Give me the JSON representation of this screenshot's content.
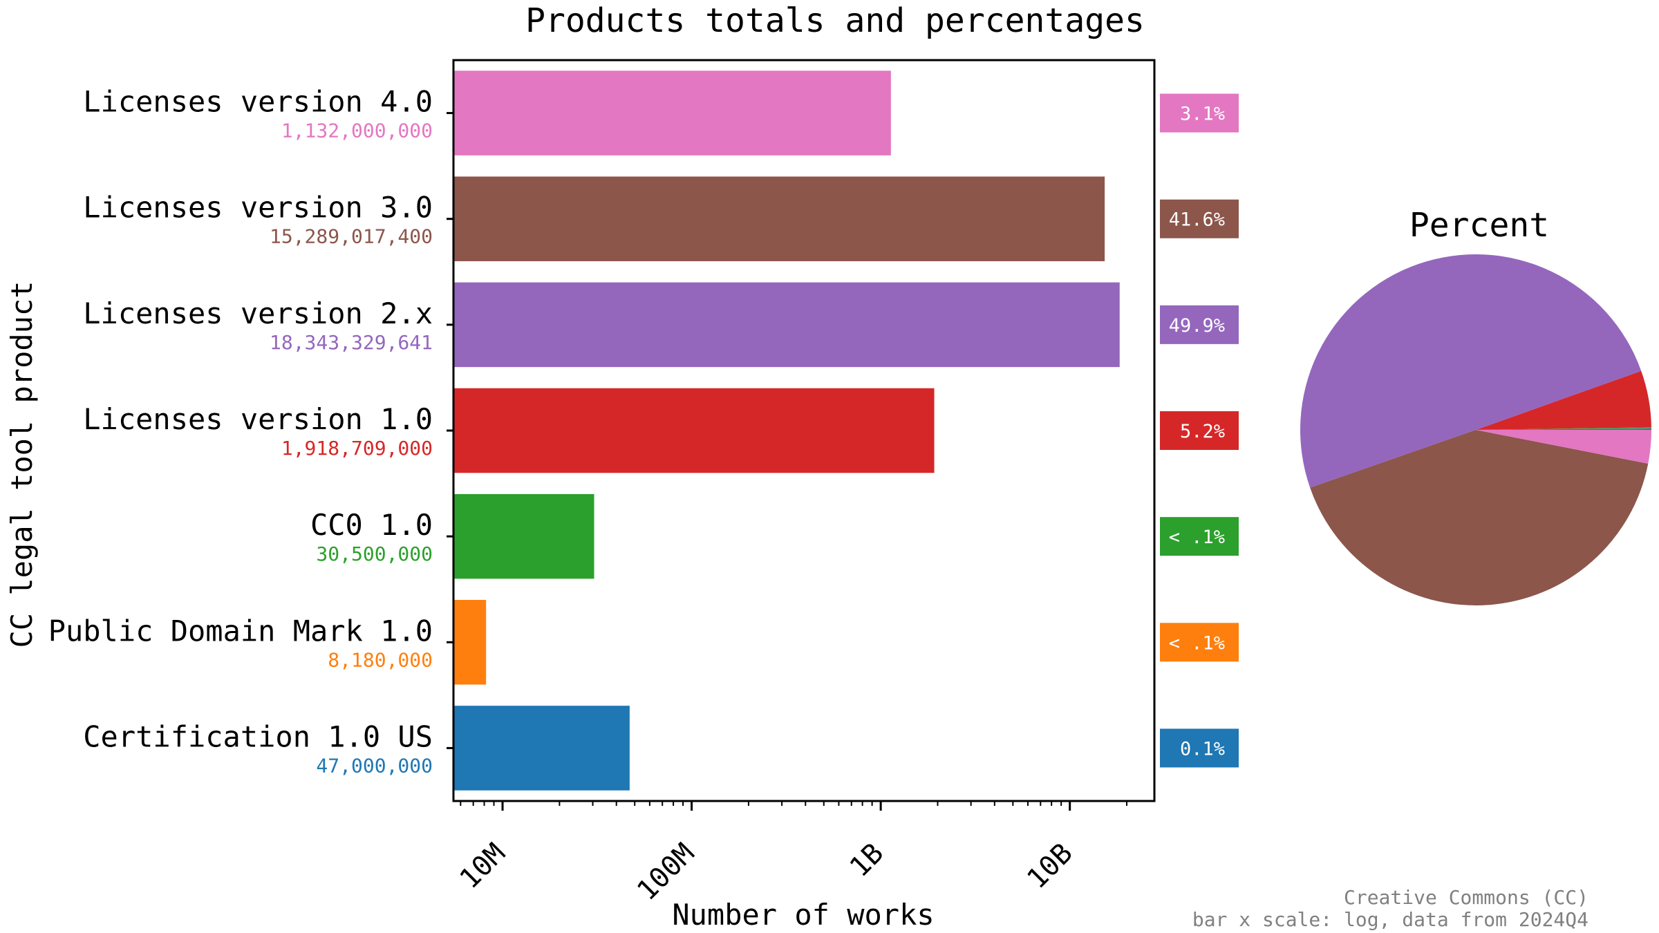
{
  "chart_data": [
    {
      "type": "bar",
      "orientation": "horizontal",
      "title": "Products totals and percentages",
      "xlabel": "Number of works",
      "ylabel": "CC legal tool product",
      "x_scale": "log",
      "xlim": [
        5500000,
        28000000000
      ],
      "x_ticks": [
        {
          "value": 10000000,
          "label": "10M"
        },
        {
          "value": 100000000,
          "label": "100M"
        },
        {
          "value": 1000000000,
          "label": "1B"
        },
        {
          "value": 10000000000,
          "label": "10B"
        }
      ],
      "grid": false,
      "categories": [
        "Licenses version 4.0",
        "Licenses version 3.0",
        "Licenses version 2.x",
        "Licenses version 1.0",
        "CC0 1.0",
        "Public Domain Mark 1.0",
        "Certification 1.0 US"
      ],
      "values": [
        1132000000,
        15289017400,
        18343329641,
        1918709000,
        30500000,
        8180000,
        47000000
      ],
      "value_labels": [
        "1,132,000,000",
        "15,289,017,400",
        "18,343,329,641",
        "1,918,709,000",
        "30,500,000",
        "8,180,000",
        "47,000,000"
      ],
      "percent_labels": [
        "3.1%",
        "41.6%",
        "49.9%",
        "5.2%",
        "< .1%",
        "< .1%",
        "0.1%"
      ],
      "colors": [
        "#e377c2",
        "#8c564b",
        "#9467bd",
        "#d62728",
        "#2ca02c",
        "#ff7f0e",
        "#1f77b4"
      ]
    },
    {
      "type": "pie",
      "title": "Percent",
      "categories": [
        "Certification 1.0 US",
        "Public Domain Mark 1.0",
        "CC0 1.0",
        "Licenses version 1.0",
        "Licenses version 2.x",
        "Licenses version 3.0",
        "Licenses version 4.0"
      ],
      "values": [
        47000000,
        8180000,
        30500000,
        1918709000,
        18343329641,
        15289017400,
        1132000000
      ],
      "colors": [
        "#1f77b4",
        "#ff7f0e",
        "#2ca02c",
        "#d62728",
        "#9467bd",
        "#8c564b",
        "#e377c2"
      ],
      "start_angle_deg": 0,
      "direction": "counterclockwise"
    }
  ],
  "footer": {
    "line1": "Creative Commons (CC)",
    "line2": "bar x scale: log, data from 2024Q4"
  }
}
